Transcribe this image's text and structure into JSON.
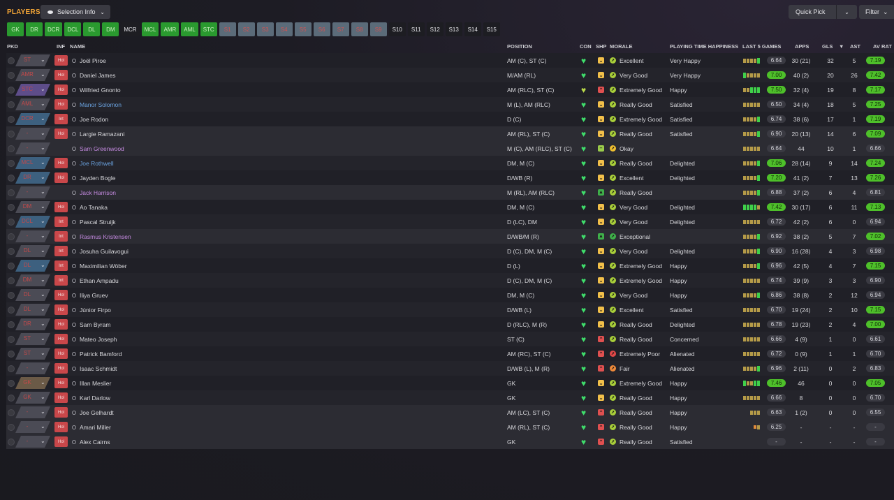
{
  "header": {
    "title": "PLAYERS",
    "selection_info_label": "Selection Info",
    "quick_pick_label": "Quick Pick",
    "filter_label": "Filter"
  },
  "positions": [
    {
      "label": "GK",
      "state": "green"
    },
    {
      "label": "DR",
      "state": "green"
    },
    {
      "label": "DCR",
      "state": "green"
    },
    {
      "label": "DCL",
      "state": "green"
    },
    {
      "label": "DL",
      "state": "green"
    },
    {
      "label": "DM",
      "state": "green"
    },
    {
      "label": "MCR",
      "state": "dark"
    },
    {
      "label": "MCL",
      "state": "green"
    },
    {
      "label": "AMR",
      "state": "green"
    },
    {
      "label": "AML",
      "state": "green"
    },
    {
      "label": "STC",
      "state": "green"
    },
    {
      "label": "S1",
      "state": "grey"
    },
    {
      "label": "S2",
      "state": "grey"
    },
    {
      "label": "S3",
      "state": "grey"
    },
    {
      "label": "S4",
      "state": "grey"
    },
    {
      "label": "S5",
      "state": "grey"
    },
    {
      "label": "S6",
      "state": "grey"
    },
    {
      "label": "S7",
      "state": "grey"
    },
    {
      "label": "S8",
      "state": "grey"
    },
    {
      "label": "S9",
      "state": "grey"
    },
    {
      "label": "S10",
      "state": "dark"
    },
    {
      "label": "S11",
      "state": "dark"
    },
    {
      "label": "S12",
      "state": "dark"
    },
    {
      "label": "S13",
      "state": "dark"
    },
    {
      "label": "S14",
      "state": "dark"
    },
    {
      "label": "S15",
      "state": "dark"
    }
  ],
  "columns": {
    "pkd": "PKD",
    "inf": "INF",
    "name": "NAME",
    "position": "POSITION",
    "con": "CON",
    "shp": "SHP",
    "morale": "MORALE",
    "pth": "PLAYING TIME HAPPINESS",
    "last5": "LAST 5 GAMES",
    "apps": "APPS",
    "gls": "GLS",
    "sort_arrow": "▼",
    "ast": "AST",
    "avrat": "AV RAT"
  },
  "players": [
    {
      "role": "ST",
      "role_color": "grey",
      "inf": "Hol",
      "name": "Joël Piroe",
      "name_color": "white",
      "position": "AM (C), ST (C)",
      "con": "green",
      "shp": "yel",
      "shp_sym": "⌄",
      "morale_icon": "yg",
      "morale": "Excellent",
      "pth": "Very Happy",
      "bars": "yyyyg",
      "rating": "6.64",
      "rating_hi": false,
      "apps": "30 (21)",
      "gls": "32",
      "ast": "5",
      "avrat": "7.19",
      "avrat_hi": true
    },
    {
      "role": "AMR",
      "role_color": "grey",
      "inf": "Hol",
      "name": "Daniel James",
      "name_color": "white",
      "position": "M/AM (RL)",
      "con": "green",
      "shp": "yel",
      "shp_sym": "⌄",
      "morale_icon": "yg",
      "morale": "Very Good",
      "pth": "Very Happy",
      "bars": "gyyyy",
      "rating": "7.00",
      "rating_hi": true,
      "apps": "40 (2)",
      "gls": "20",
      "ast": "26",
      "avrat": "7.42",
      "avrat_hi": true
    },
    {
      "role": "STC",
      "role_color": "purple",
      "inf": "Hol",
      "name": "Wilfried Gnonto",
      "name_color": "white",
      "position": "AM (RLC), ST (C)",
      "con": "yellow",
      "shp": "red",
      "shp_sym": "⌃",
      "morale_icon": "yg",
      "morale": "Extremely Good",
      "pth": "Happy",
      "bars": "yyggg",
      "rating": "7.50",
      "rating_hi": true,
      "apps": "32 (4)",
      "gls": "19",
      "ast": "8",
      "avrat": "7.17",
      "avrat_hi": true
    },
    {
      "role": "AML",
      "role_color": "grey",
      "inf": "Hol",
      "name": "Manor Solomon",
      "name_color": "blue",
      "position": "M (L), AM (RLC)",
      "con": "green",
      "shp": "yel",
      "shp_sym": "⌄",
      "morale_icon": "yg",
      "morale": "Really Good",
      "pth": "Satisfied",
      "bars": "yyyyy",
      "rating": "6.50",
      "rating_hi": false,
      "apps": "34 (4)",
      "gls": "18",
      "ast": "5",
      "avrat": "7.25",
      "avrat_hi": true
    },
    {
      "role": "DCR",
      "role_color": "blue",
      "inf": "Int",
      "name": "Joe Rodon",
      "name_color": "white",
      "position": "D (C)",
      "con": "green",
      "shp": "yel",
      "shp_sym": "⌄",
      "morale_icon": "yg",
      "morale": "Extremely Good",
      "pth": "Satisfied",
      "bars": "yyyyg",
      "rating": "6.74",
      "rating_hi": false,
      "apps": "38 (6)",
      "gls": "17",
      "ast": "1",
      "avrat": "7.19",
      "avrat_hi": true
    },
    {
      "role": "-",
      "role_color": "grey",
      "inf": "Hol",
      "name": "Largie Ramazani",
      "name_color": "white",
      "position": "AM (RL), ST (C)",
      "con": "green",
      "shp": "yel",
      "shp_sym": "⌄",
      "morale_icon": "yg",
      "morale": "Really Good",
      "pth": "Satisfied",
      "bars": "yyyyg",
      "rating": "6.90",
      "rating_hi": false,
      "apps": "20 (13)",
      "gls": "14",
      "ast": "6",
      "avrat": "7.09",
      "avrat_hi": true
    },
    {
      "role": "-",
      "role_color": "grey",
      "inf": "",
      "name": "Sam Greenwood",
      "name_color": "purple",
      "position": "M (C), AM (RLC), ST (C)",
      "con": "green",
      "shp": "lgr",
      "shp_sym": "–",
      "morale_icon": "ye",
      "morale": "Okay",
      "pth": "",
      "bars": "yyyyy",
      "rating": "6.64",
      "rating_hi": false,
      "apps": "44",
      "gls": "10",
      "ast": "1",
      "avrat": "6.66",
      "avrat_hi": false
    },
    {
      "role": "MCL",
      "role_color": "blue",
      "inf": "Hol",
      "name": "Joe Rothwell",
      "name_color": "blue",
      "position": "DM, M (C)",
      "con": "green",
      "shp": "yel",
      "shp_sym": "⌄",
      "morale_icon": "yg",
      "morale": "Really Good",
      "pth": "Delighted",
      "bars": "yyyyg",
      "rating": "7.06",
      "rating_hi": true,
      "apps": "28 (14)",
      "gls": "9",
      "ast": "14",
      "avrat": "7.24",
      "avrat_hi": true
    },
    {
      "role": "DR",
      "role_color": "blue",
      "inf": "Hol",
      "name": "Jayden Bogle",
      "name_color": "white",
      "position": "D/WB (R)",
      "con": "green",
      "shp": "yel",
      "shp_sym": "⌄",
      "morale_icon": "yg",
      "morale": "Excellent",
      "pth": "Delighted",
      "bars": "yyyyg",
      "rating": "7.20",
      "rating_hi": true,
      "apps": "41 (2)",
      "gls": "7",
      "ast": "13",
      "avrat": "7.26",
      "avrat_hi": true
    },
    {
      "role": "-",
      "role_color": "grey",
      "inf": "",
      "name": "Jack Harrison",
      "name_color": "purple",
      "position": "M (RL), AM (RLC)",
      "con": "green",
      "shp": "grn",
      "shp_sym": "▲",
      "morale_icon": "yg",
      "morale": "Really Good",
      "pth": "",
      "bars": "yyyyg",
      "rating": "6.88",
      "rating_hi": false,
      "apps": "37 (2)",
      "gls": "6",
      "ast": "4",
      "avrat": "6.81",
      "avrat_hi": false
    },
    {
      "role": "DM",
      "role_color": "grey",
      "inf": "Hol",
      "name": "Ao Tanaka",
      "name_color": "white",
      "position": "DM, M (C)",
      "con": "green",
      "shp": "yel",
      "shp_sym": "⌄",
      "morale_icon": "yg",
      "morale": "Very Good",
      "pth": "Delighted",
      "bars": "ggggy",
      "rating": "7.42",
      "rating_hi": true,
      "apps": "30 (17)",
      "gls": "6",
      "ast": "11",
      "avrat": "7.13",
      "avrat_hi": true
    },
    {
      "role": "DCL",
      "role_color": "blue",
      "inf": "Int",
      "name": "Pascal Struijk",
      "name_color": "white",
      "position": "D (LC), DM",
      "con": "green",
      "shp": "yel",
      "shp_sym": "⌄",
      "morale_icon": "yg",
      "morale": "Very Good",
      "pth": "Delighted",
      "bars": "yyyyy",
      "rating": "6.72",
      "rating_hi": false,
      "apps": "42 (2)",
      "gls": "6",
      "ast": "0",
      "avrat": "6.94",
      "avrat_hi": false
    },
    {
      "role": "-",
      "role_color": "grey",
      "inf": "Int",
      "name": "Rasmus Kristensen",
      "name_color": "purple",
      "position": "D/WB/M (R)",
      "con": "green",
      "shp": "grn",
      "shp_sym": "▲",
      "morale_icon": "gr",
      "morale": "Exceptional",
      "pth": "",
      "bars": "yyyyg",
      "rating": "6.92",
      "rating_hi": false,
      "apps": "38 (2)",
      "gls": "5",
      "ast": "7",
      "avrat": "7.02",
      "avrat_hi": true
    },
    {
      "role": "DL",
      "role_color": "grey",
      "inf": "Int",
      "name": "Josuha Guilavogui",
      "name_color": "white",
      "position": "D (C), DM, M (C)",
      "con": "green",
      "shp": "yel",
      "shp_sym": "⌄",
      "morale_icon": "yg",
      "morale": "Very Good",
      "pth": "Delighted",
      "bars": "yyyyg",
      "rating": "6.90",
      "rating_hi": false,
      "apps": "16 (28)",
      "gls": "4",
      "ast": "3",
      "avrat": "6.98",
      "avrat_hi": false
    },
    {
      "role": "DL",
      "role_color": "blue",
      "inf": "Int",
      "name": "Maximilian Wöber",
      "name_color": "white",
      "position": "D (L)",
      "con": "green",
      "shp": "yel",
      "shp_sym": "⌄",
      "morale_icon": "yg",
      "morale": "Extremely Good",
      "pth": "Happy",
      "bars": "yyyyg",
      "rating": "6.96",
      "rating_hi": false,
      "apps": "42 (5)",
      "gls": "4",
      "ast": "7",
      "avrat": "7.15",
      "avrat_hi": true
    },
    {
      "role": "DM",
      "role_color": "grey",
      "inf": "Int",
      "name": "Ethan Ampadu",
      "name_color": "white",
      "position": "D (C), DM, M (C)",
      "con": "green",
      "shp": "yel",
      "shp_sym": "⌄",
      "morale_icon": "yg",
      "morale": "Extremely Good",
      "pth": "Happy",
      "bars": "yyyyy",
      "rating": "6.74",
      "rating_hi": false,
      "apps": "39 (9)",
      "gls": "3",
      "ast": "3",
      "avrat": "6.90",
      "avrat_hi": false
    },
    {
      "role": "DL",
      "role_color": "grey",
      "inf": "Hol",
      "name": "Iliya Gruev",
      "name_color": "white",
      "position": "DM, M (C)",
      "con": "green",
      "shp": "yel",
      "shp_sym": "⌄",
      "morale_icon": "yg",
      "morale": "Very Good",
      "pth": "Happy",
      "bars": "yyyyg",
      "rating": "6.86",
      "rating_hi": false,
      "apps": "38 (8)",
      "gls": "2",
      "ast": "12",
      "avrat": "6.94",
      "avrat_hi": false
    },
    {
      "role": "DL",
      "role_color": "grey",
      "inf": "Hol",
      "name": "Júnior Firpo",
      "name_color": "white",
      "position": "D/WB (L)",
      "con": "green",
      "shp": "yel",
      "shp_sym": "⌄",
      "morale_icon": "yg",
      "morale": "Excellent",
      "pth": "Satisfied",
      "bars": "yyyyy",
      "rating": "6.70",
      "rating_hi": false,
      "apps": "19 (24)",
      "gls": "2",
      "ast": "10",
      "avrat": "7.15",
      "avrat_hi": true
    },
    {
      "role": "DR",
      "role_color": "grey",
      "inf": "Hol",
      "name": "Sam Byram",
      "name_color": "white",
      "position": "D (RLC), M (R)",
      "con": "green",
      "shp": "yel",
      "shp_sym": "⌄",
      "morale_icon": "yg",
      "morale": "Really Good",
      "pth": "Delighted",
      "bars": "yyyyy",
      "rating": "6.78",
      "rating_hi": false,
      "apps": "19 (23)",
      "gls": "2",
      "ast": "4",
      "avrat": "7.00",
      "avrat_hi": true
    },
    {
      "role": "ST",
      "role_color": "grey",
      "inf": "Hol",
      "name": "Mateo Joseph",
      "name_color": "white",
      "position": "ST (C)",
      "con": "green",
      "shp": "red",
      "shp_sym": "⌃",
      "morale_icon": "yg",
      "morale": "Really Good",
      "pth": "Concerned",
      "bars": "yyyyy",
      "rating": "6.66",
      "rating_hi": false,
      "apps": "4 (9)",
      "gls": "1",
      "ast": "0",
      "avrat": "6.61",
      "avrat_hi": false
    },
    {
      "role": "ST",
      "role_color": "grey",
      "inf": "Hol",
      "name": "Patrick Bamford",
      "name_color": "white",
      "position": "AM (RC), ST (C)",
      "con": "green",
      "shp": "red",
      "shp_sym": "⌃",
      "morale_icon": "rd",
      "morale": "Extremely Poor",
      "pth": "Alienated",
      "bars": "yyyyy",
      "rating": "6.72",
      "rating_hi": false,
      "apps": "0 (9)",
      "gls": "1",
      "ast": "1",
      "avrat": "6.70",
      "avrat_hi": false
    },
    {
      "role": "-",
      "role_color": "grey",
      "inf": "Hol",
      "name": "Isaac Schmidt",
      "name_color": "white",
      "position": "D/WB (L), M (R)",
      "con": "green",
      "shp": "red",
      "shp_sym": "⌃",
      "morale_icon": "or",
      "morale": "Fair",
      "pth": "Alienated",
      "bars": "yyyyg",
      "rating": "6.96",
      "rating_hi": false,
      "apps": "2 (11)",
      "gls": "0",
      "ast": "2",
      "avrat": "6.83",
      "avrat_hi": false
    },
    {
      "role": "GK",
      "role_color": "tan",
      "inf": "Hol",
      "name": "Illan Meslier",
      "name_color": "white",
      "position": "GK",
      "con": "green",
      "shp": "yel",
      "shp_sym": "⌄",
      "morale_icon": "yg",
      "morale": "Extremely Good",
      "pth": "Happy",
      "bars": "gyygg",
      "rating": "7.46",
      "rating_hi": true,
      "apps": "46",
      "gls": "0",
      "ast": "0",
      "avrat": "7.05",
      "avrat_hi": true
    },
    {
      "role": "GK",
      "role_color": "grey",
      "inf": "Hol",
      "name": "Karl Darlow",
      "name_color": "white",
      "position": "GK",
      "con": "green",
      "shp": "yel",
      "shp_sym": "⌄",
      "morale_icon": "yg",
      "morale": "Really Good",
      "pth": "Happy",
      "bars": "yyyyy",
      "rating": "6.66",
      "rating_hi": false,
      "apps": "8",
      "gls": "0",
      "ast": "0",
      "avrat": "6.70",
      "avrat_hi": false
    },
    {
      "role": "-",
      "role_color": "grey",
      "inf": "Hol",
      "name": "Joe Gelhardt",
      "name_color": "white",
      "position": "AM (LC), ST (C)",
      "con": "green",
      "shp": "red",
      "shp_sym": "⌃",
      "morale_icon": "yg",
      "morale": "Really Good",
      "pth": "Happy",
      "bars": "yyy",
      "rating": "6.63",
      "rating_hi": false,
      "apps": "1 (2)",
      "gls": "0",
      "ast": "0",
      "avrat": "6.55",
      "avrat_hi": false
    },
    {
      "role": "-",
      "role_color": "grey",
      "inf": "Hol",
      "name": "Amari Miller",
      "name_color": "white",
      "position": "AM (RL), ST (C)",
      "con": "green",
      "shp": "red",
      "shp_sym": "⌃",
      "morale_icon": "yg",
      "morale": "Really Good",
      "pth": "Happy",
      "bars": "oy",
      "rating": "6.25",
      "rating_hi": false,
      "apps": "-",
      "gls": "-",
      "ast": "-",
      "avrat": "-",
      "avrat_hi": false
    },
    {
      "role": "-",
      "role_color": "grey",
      "inf": "Hol",
      "name": "Alex Cairns",
      "name_color": "white",
      "position": "GK",
      "con": "green",
      "shp": "red",
      "shp_sym": "⌃",
      "morale_icon": "yg",
      "morale": "Really Good",
      "pth": "Satisfied",
      "bars": "",
      "rating": "-",
      "rating_hi": false,
      "apps": "-",
      "gls": "-",
      "ast": "-",
      "avrat": "-",
      "avrat_hi": false
    }
  ]
}
